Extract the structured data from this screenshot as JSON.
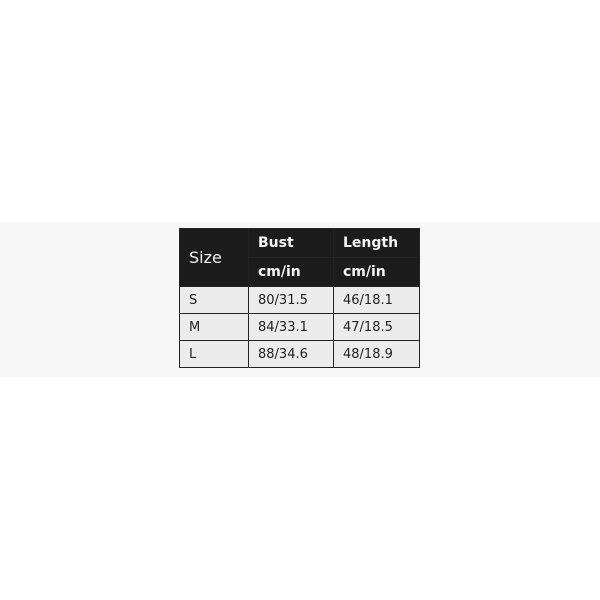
{
  "table": {
    "headers": {
      "size": "Size",
      "bust": "Bust",
      "length": "Length",
      "bust_unit": "cm/in",
      "length_unit": "cm/in"
    },
    "rows": [
      {
        "size": "S",
        "bust": "80/31.5",
        "length": "46/18.1"
      },
      {
        "size": "M",
        "bust": "84/33.1",
        "length": "47/18.5"
      },
      {
        "size": "L",
        "bust": "88/34.6",
        "length": "48/18.9"
      }
    ]
  }
}
